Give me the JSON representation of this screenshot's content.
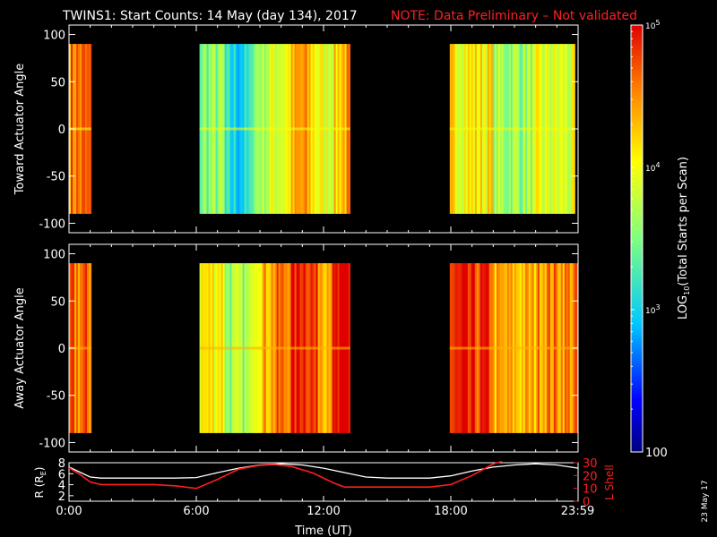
{
  "title": "TWINS1: Start Counts: 14 May (day 134), 2017",
  "note": "NOTE: Data Preliminary – Not validated",
  "date_stamp": "23 May 17",
  "colors": {
    "background": "#000000",
    "axes": "#ffffff",
    "note": "#ff2020",
    "radius_line": "#ffffff",
    "lshell_line": "#ff1e1e"
  },
  "chart_data": [
    {
      "type": "heatmap",
      "panel": "toward",
      "ylabel": "Toward Actuator Angle",
      "ylim": [
        -110,
        110
      ],
      "yticks": [
        100,
        50,
        0,
        -50,
        -100
      ],
      "xlim_hours": [
        0,
        24
      ],
      "angle_range": [
        -90,
        90
      ],
      "data_intervals_hours": [
        [
          0.0,
          1.05
        ],
        [
          6.15,
          13.25
        ],
        [
          17.95,
          23.85
        ]
      ],
      "gaps_hours": [
        [
          1.05,
          6.15
        ],
        [
          13.25,
          17.95
        ],
        [
          23.85,
          24.0
        ]
      ]
    },
    {
      "type": "heatmap",
      "panel": "away",
      "ylabel": "Away Actuator Angle",
      "ylim": [
        -110,
        110
      ],
      "yticks": [
        100,
        50,
        0,
        -50,
        -100
      ],
      "xlim_hours": [
        0,
        24
      ],
      "angle_range": [
        -90,
        90
      ],
      "data_intervals_hours": [
        [
          0.0,
          1.05
        ],
        [
          6.15,
          13.25
        ],
        [
          17.95,
          24.0
        ]
      ],
      "gaps_hours": [
        [
          1.05,
          6.15
        ],
        [
          13.25,
          17.95
        ]
      ]
    },
    {
      "type": "line",
      "panel": "orbit",
      "xlabel": "Time (UT)",
      "xticks": [
        "0:00",
        "6:00",
        "12:00",
        "18:00",
        "23:59"
      ],
      "xtick_hours": [
        0,
        6,
        12,
        18,
        23.98
      ],
      "ylabel_left": "R (R",
      "ylabel_left_sub": "E",
      "ylabel_left_close": ")",
      "ylim_left": [
        1,
        8
      ],
      "yticks_left": [
        8,
        6,
        4,
        2
      ],
      "ylabel_right": "L Shell",
      "ylim_right": [
        0,
        30
      ],
      "yticks_right": [
        30,
        20,
        10,
        0
      ],
      "yticks_right_labels": [
        "30",
        "20",
        "10",
        "0"
      ],
      "series": [
        {
          "axis": "left",
          "color": "#ffffff",
          "x": [
            0,
            0.5,
            1,
            1.5,
            2,
            3,
            4,
            5,
            6,
            7,
            8,
            9,
            10,
            11,
            12,
            12.5,
            13,
            14,
            15,
            16,
            17,
            18,
            19,
            20,
            21,
            22,
            23,
            24
          ],
          "y": [
            7.2,
            6.3,
            5.4,
            5.2,
            5.2,
            5.2,
            5.2,
            5.2,
            5.3,
            6.2,
            7.0,
            7.6,
            7.8,
            7.6,
            7.0,
            6.6,
            6.2,
            5.4,
            5.2,
            5.2,
            5.2,
            5.6,
            6.5,
            7.2,
            7.6,
            7.8,
            7.6,
            7.0
          ]
        },
        {
          "axis": "right",
          "color": "#ff1e1e",
          "x": [
            0,
            0.5,
            1,
            1.5,
            2,
            3,
            4,
            5,
            6,
            7,
            8,
            9,
            9.7,
            10.5,
            11.5,
            12.5,
            13,
            14,
            15,
            16,
            17,
            18,
            19,
            20,
            20.4
          ],
          "y": [
            26,
            21,
            15,
            13,
            13,
            13,
            13,
            12,
            10,
            17,
            25,
            28,
            28.5,
            27,
            22,
            14,
            11,
            11,
            11,
            11,
            11,
            13,
            20,
            29,
            31
          ]
        }
      ]
    },
    {
      "type": "heatmap-colorbar",
      "label": "LOG",
      "label_sub": "10",
      "label_rest": "(Total Starts per Scan)",
      "scale": "log",
      "range": [
        100,
        100000
      ],
      "tick_values": [
        100,
        1000,
        10000,
        100000
      ],
      "tick_labels": [
        {
          "base": "100",
          "exp": ""
        },
        {
          "base": "10",
          "exp": "3"
        },
        {
          "base": "10",
          "exp": "4"
        },
        {
          "base": "10",
          "exp": "5"
        }
      ]
    }
  ]
}
